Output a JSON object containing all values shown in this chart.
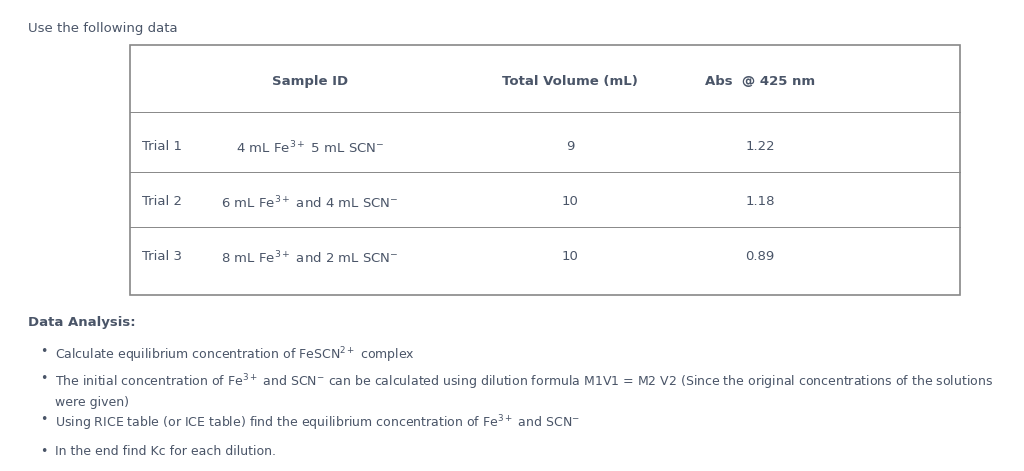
{
  "title_text": "Use the following data",
  "table_headers": [
    "",
    "Sample ID",
    "Total Volume (mL)",
    "Abs  @ 425 nm"
  ],
  "table_rows": [
    [
      "Trial 1",
      "4 mL Fe$^{3+}$ 5 mL SCN$^{-}$",
      "9",
      "1.22"
    ],
    [
      "Trial 2",
      "6 mL Fe$^{3+}$ and 4 mL SCN$^{-}$",
      "10",
      "1.18"
    ],
    [
      "Trial 3",
      "8 mL Fe$^{3+}$ and 2 mL SCN$^{-}$",
      "10",
      "0.89"
    ]
  ],
  "bullet_points": [
    "Calculate equilibrium concentration of FeSCN$^{2+}$ complex",
    "The initial concentration of Fe$^{3+}$ and SCN$^{-}$ can be calculated using dilution formula M1V1 = M2 V2 (Since the original concentrations of the solutions\nwere given)",
    "Using RICE table (or ICE table) find the equilibrium concentration of Fe$^{3+}$ and SCN$^{-}$",
    "In the end find Kc for each dilution."
  ],
  "data_analysis_label": "Data Analysis:",
  "text_color": "#4a5568",
  "bg_color": "#ffffff",
  "table_border_color": "#888888",
  "header_fontsize": 9.5,
  "body_fontsize": 9.5,
  "title_fontsize": 9.5,
  "bullet_fontsize": 9.0,
  "font_family": "DejaVu Sans"
}
